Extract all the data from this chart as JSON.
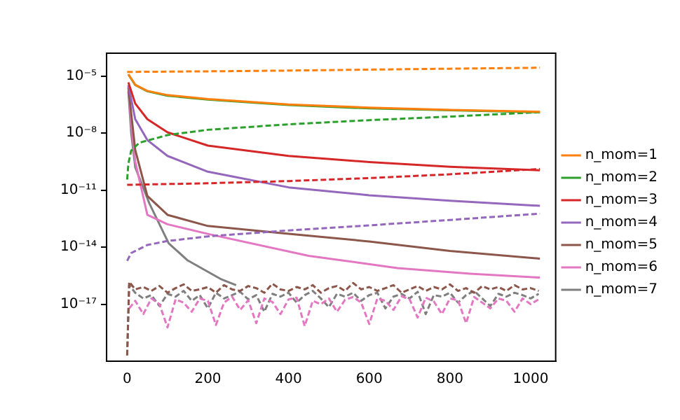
{
  "chart_data": {
    "type": "line",
    "log": "y",
    "grid": false,
    "legend": "right",
    "marker": "none",
    "xlim": [
      -51,
      1062
    ],
    "xticks": [
      0,
      200,
      400,
      600,
      800,
      1000
    ],
    "ylim": [
      1e-20,
      0.00016
    ],
    "yticks": [
      {
        "value": 1e-05,
        "label": "10⁻⁵"
      },
      {
        "value": 1e-08,
        "label": "10⁻⁸"
      },
      {
        "value": 1e-11,
        "label": "10⁻¹¹"
      },
      {
        "value": 1e-14,
        "label": "10⁻¹⁴"
      },
      {
        "value": 1e-17,
        "label": "10⁻¹⁷"
      }
    ],
    "series": [
      {
        "name": "n_mom=1",
        "color": "#ff7f0e",
        "line_style": "solid",
        "x": [
          3,
          20,
          50,
          100,
          200,
          400,
          600,
          800,
          1023
        ],
        "values": [
          1.26e-05,
          3.5e-06,
          1.66e-06,
          1e-06,
          6.2e-07,
          3.2e-07,
          2.2e-07,
          1.66e-07,
          1.32e-07
        ]
      },
      {
        "color": "#ff7f0e",
        "line_style": "dashed",
        "x": [
          0,
          200,
          400,
          600,
          800,
          1023
        ],
        "values": [
          1.66e-05,
          1.78e-05,
          1.95e-05,
          2.19e-05,
          2.45e-05,
          2.75e-05
        ]
      },
      {
        "name": "n_mom=2",
        "color": "#2ca02c",
        "line_style": "solid",
        "x": [
          3,
          20,
          50,
          100,
          200,
          400,
          600,
          800,
          1023
        ],
        "values": [
          1.2e-05,
          3.4e-06,
          1.6e-06,
          9.3e-07,
          5.8e-07,
          3e-07,
          2e-07,
          1.6e-07,
          1.26e-07
        ]
      },
      {
        "color": "#2ca02c",
        "line_style": "dashed",
        "x": [
          0,
          3,
          10,
          30,
          100,
          200,
          400,
          600,
          800,
          1023
        ],
        "values": [
          3.6e-11,
          2.5e-10,
          1.2e-09,
          3.1e-09,
          7.9e-09,
          1.5e-08,
          2.9e-08,
          4.8e-08,
          7.4e-08,
          1.26e-07
        ]
      },
      {
        "name": "n_mom=3",
        "color": "#d62728",
        "line_style": "solid",
        "x": [
          3,
          20,
          50,
          100,
          200,
          400,
          600,
          800,
          1023
        ],
        "values": [
          4.7e-06,
          3.6e-07,
          5.4e-08,
          1.1e-08,
          2.2e-09,
          6.3e-10,
          3e-10,
          1.7e-10,
          1.1e-10
        ]
      },
      {
        "color": "#d62728",
        "line_style": "dashed",
        "x": [
          0,
          200,
          400,
          600,
          800,
          1023
        ],
        "values": [
          1.9e-11,
          2.3e-11,
          3e-11,
          4.3e-11,
          6.8e-11,
          1.3e-10
        ]
      },
      {
        "name": "n_mom=4",
        "color": "#9467bd",
        "line_style": "solid",
        "x": [
          3,
          20,
          50,
          100,
          200,
          400,
          600,
          800,
          1023
        ],
        "values": [
          3.4e-06,
          5.4e-08,
          4.3e-09,
          6.3e-10,
          9.3e-11,
          1.4e-11,
          5.4e-12,
          2.8e-12,
          1.5e-12
        ]
      },
      {
        "color": "#9467bd",
        "line_style": "dashed",
        "x": [
          0,
          10,
          50,
          100,
          200,
          400,
          600,
          800,
          1023
        ],
        "values": [
          1.9e-15,
          4.9e-15,
          1.3e-14,
          2.1e-14,
          3.7e-14,
          7.6e-14,
          1.4e-13,
          2.7e-13,
          5.8e-13
        ]
      },
      {
        "name": "n_mom=5",
        "color": "#8c564b",
        "line_style": "solid",
        "x": [
          3,
          20,
          50,
          100,
          200,
          400,
          600,
          800,
          1023
        ],
        "values": [
          2.5e-06,
          1.3e-09,
          5e-12,
          5e-13,
          1.3e-13,
          5e-14,
          2e-14,
          6.3e-15,
          2.5e-15
        ]
      },
      {
        "color": "#8c564b",
        "line_style": "dashed",
        "x": [
          0,
          5,
          20,
          40,
          60,
          80,
          100,
          120,
          140,
          160,
          180,
          200,
          220,
          240,
          260,
          280,
          300,
          320,
          340,
          360,
          380,
          400,
          420,
          440,
          460,
          480,
          500,
          520,
          540,
          560,
          580,
          600,
          620,
          640,
          660,
          680,
          700,
          720,
          740,
          760,
          780,
          800,
          820,
          840,
          860,
          880,
          900,
          920,
          940,
          960,
          980,
          1000,
          1020
        ],
        "values": [
          2e-20,
          1.5e-16,
          6e-17,
          8e-17,
          5e-17,
          9e-17,
          4e-17,
          7e-17,
          1.1e-16,
          5e-17,
          6e-17,
          8e-17,
          4e-17,
          1e-16,
          6e-17,
          5e-17,
          9e-17,
          7e-17,
          4e-17,
          1.2e-16,
          6e-17,
          5e-17,
          8e-17,
          6e-17,
          1e-16,
          4e-17,
          7e-17,
          9e-17,
          5e-17,
          1.3e-16,
          6e-17,
          8e-17,
          5e-17,
          7e-17,
          1e-16,
          4e-17,
          6e-17,
          9e-17,
          5e-17,
          8e-17,
          6e-17,
          1.1e-16,
          5e-17,
          7e-17,
          4e-17,
          9e-17,
          6e-17,
          8e-17,
          5e-17,
          1e-16,
          6e-17,
          7e-17,
          5e-17
        ]
      },
      {
        "name": "n_mom=6",
        "color": "#e377c2",
        "line_style": "solid",
        "x": [
          3,
          10,
          20,
          50,
          100,
          200,
          450,
          670,
          850,
          1023
        ],
        "values": [
          3.2e-06,
          3.2e-08,
          3.2e-10,
          5e-13,
          1.6e-13,
          5e-14,
          3.5e-15,
          7.9e-16,
          4e-16,
          2.5e-16
        ]
      },
      {
        "color": "#e377c2",
        "line_style": "dashed",
        "x": [
          5,
          20,
          40,
          60,
          80,
          100,
          120,
          140,
          160,
          180,
          200,
          220,
          240,
          260,
          280,
          300,
          320,
          340,
          360,
          380,
          400,
          420,
          440,
          460,
          480,
          500,
          520,
          540,
          560,
          580,
          600,
          620,
          640,
          660,
          680,
          700,
          720,
          740,
          760,
          780,
          800,
          820,
          840,
          860,
          880,
          900,
          920,
          940,
          960,
          980,
          1000,
          1020
        ],
        "values": [
          6e-18,
          1.5e-17,
          3e-18,
          2e-17,
          1e-17,
          6e-19,
          1.8e-17,
          1.2e-17,
          4e-18,
          2e-17,
          1.5e-17,
          8e-19,
          1.2e-17,
          2.5e-17,
          5e-18,
          1.6e-17,
          1e-18,
          2e-17,
          1.3e-17,
          3e-18,
          1.8e-17,
          2.2e-17,
          7e-19,
          1.5e-17,
          1e-17,
          2e-17,
          4e-18,
          1.7e-17,
          2.4e-17,
          1.2e-17,
          9e-19,
          2e-17,
          1.5e-17,
          5e-18,
          2.6e-17,
          1.8e-17,
          2e-18,
          2.2e-17,
          1.4e-17,
          3e-18,
          2e-17,
          1.6e-17,
          1e-18,
          2.4e-17,
          1.2e-17,
          6e-18,
          2e-17,
          1.5e-17,
          4e-18,
          2e-17,
          1e-17,
          1.8e-17
        ]
      },
      {
        "name": "n_mom=7",
        "color": "#7f7f7f",
        "line_style": "solid",
        "x": [
          3,
          10,
          20,
          55,
          103,
          150,
          234,
          270
        ],
        "values": [
          1.6e-06,
          1e-08,
          1.6e-10,
          2e-12,
          1.6e-14,
          2e-15,
          2e-16,
          1e-16
        ]
      },
      {
        "color": "#7f7f7f",
        "line_style": "dashed",
        "x": [
          0,
          5,
          20,
          40,
          60,
          80,
          100,
          120,
          140,
          160,
          180,
          200,
          220,
          240,
          260,
          280,
          300,
          320,
          340,
          360,
          380,
          400,
          420,
          440,
          460,
          480,
          500,
          520,
          540,
          560,
          580,
          600,
          620,
          640,
          660,
          680,
          700,
          720,
          740,
          760,
          780,
          800,
          820,
          840,
          860,
          880,
          900,
          920,
          940,
          960,
          980,
          1000,
          1020
        ],
        "values": [
          2e-20,
          1e-16,
          4e-17,
          2e-17,
          3e-17,
          8e-18,
          3.5e-17,
          2.5e-17,
          5e-17,
          1.5e-17,
          3e-17,
          6e-18,
          4e-17,
          2e-17,
          3e-17,
          4.5e-17,
          1.8e-17,
          3e-17,
          4e-18,
          3.5e-17,
          2.5e-17,
          4e-17,
          1.2e-17,
          3e-17,
          5e-17,
          2e-17,
          7e-18,
          3.5e-17,
          2.5e-17,
          4e-17,
          1.5e-17,
          3e-17,
          4e-17,
          6e-18,
          2.5e-17,
          3.5e-17,
          2e-17,
          4.5e-17,
          3e-18,
          3e-17,
          2.5e-17,
          4e-17,
          1.2e-17,
          3e-17,
          5e-17,
          2e-17,
          8e-18,
          3.5e-17,
          2.5e-17,
          4e-17,
          3e-17,
          2e-17,
          3.5e-17
        ]
      }
    ]
  }
}
